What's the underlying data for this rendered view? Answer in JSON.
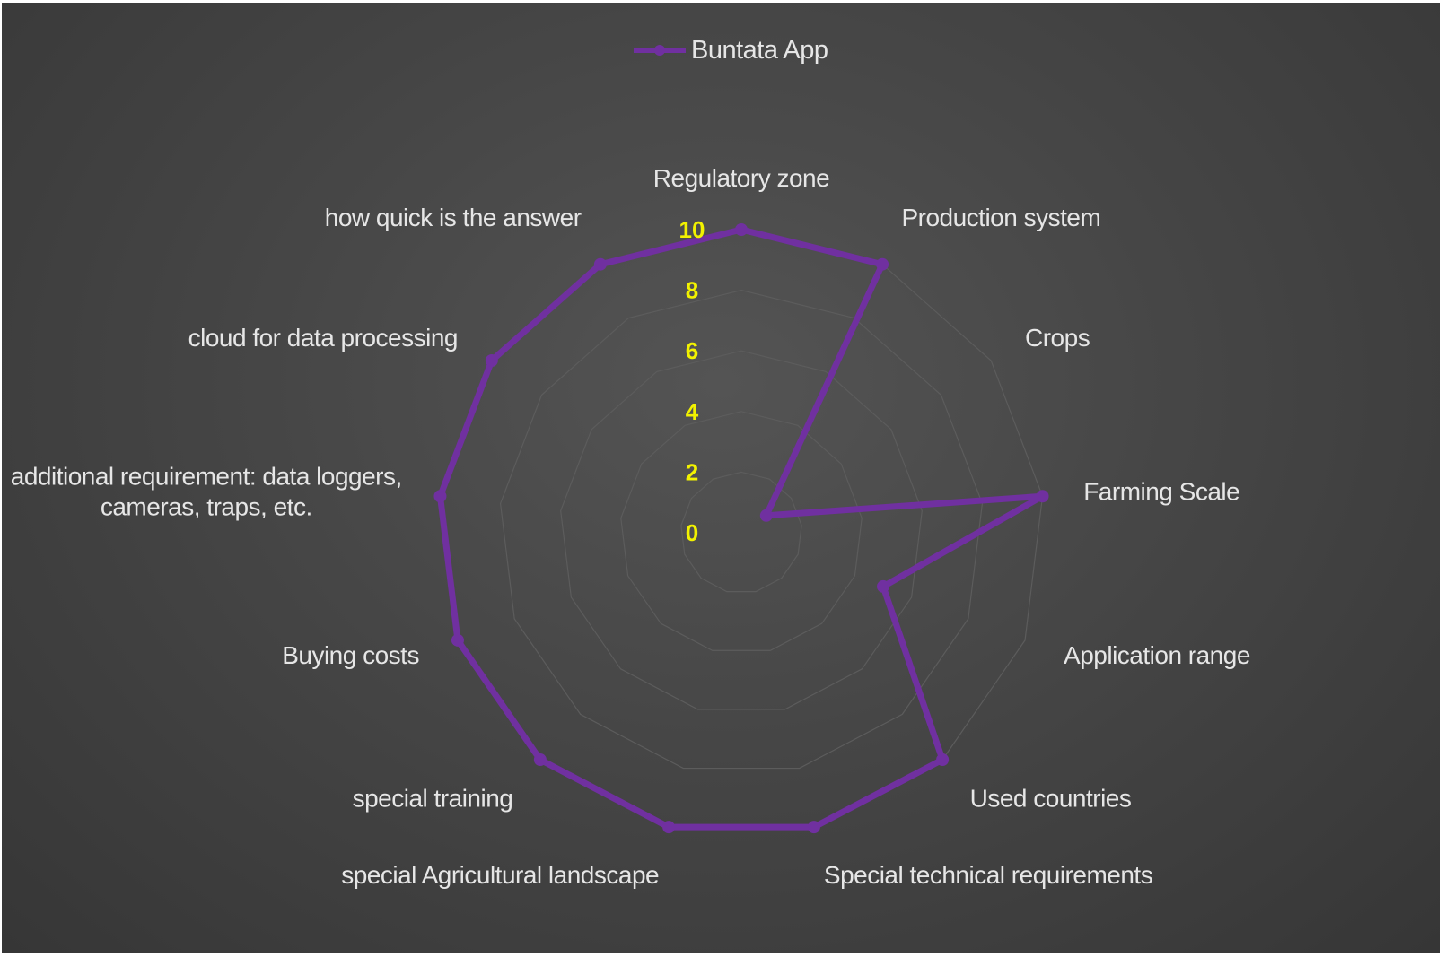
{
  "chart_data": {
    "type": "radar",
    "title": "",
    "legend": {
      "position": "top"
    },
    "axis": {
      "min": 0,
      "max": 10,
      "step": 2,
      "ticks": [
        "0",
        "2",
        "4",
        "6",
        "8",
        "10"
      ]
    },
    "grid": true,
    "categories": [
      "Regulatory zone",
      "Production system",
      "Crops",
      "Farming Scale",
      "Application range",
      "Used countries",
      "Special technical requirements",
      "special Agricultural landscape",
      "special training",
      "Buying costs",
      "additional requirement: data loggers, cameras, traps, etc.",
      "cloud for data processing",
      "how quick is the answer"
    ],
    "category_lines": [
      [
        "Regulatory zone"
      ],
      [
        "Production system"
      ],
      [
        "Crops"
      ],
      [
        "Farming Scale"
      ],
      [
        "Application range"
      ],
      [
        "Used countries"
      ],
      [
        "Special technical requirements"
      ],
      [
        "special Agricultural landscape"
      ],
      [
        "special training"
      ],
      [
        "Buying costs"
      ],
      [
        "additional requirement: data loggers,",
        "cameras, traps, etc."
      ],
      [
        "cloud for data processing"
      ],
      [
        "how quick is the answer"
      ]
    ],
    "series": [
      {
        "name": "Buntata App",
        "color": "#7030a0",
        "values": [
          10,
          10,
          1,
          10,
          5,
          10,
          10,
          10,
          10,
          10,
          10,
          10,
          10
        ]
      }
    ]
  }
}
